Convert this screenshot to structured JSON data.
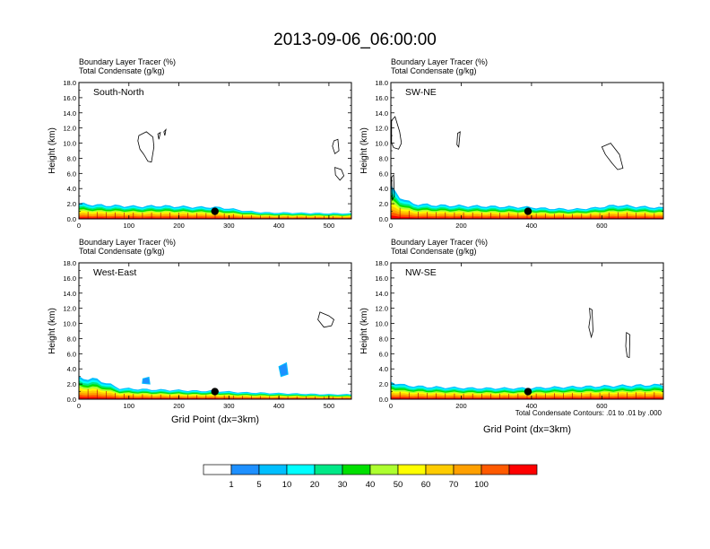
{
  "title": "2013-09-06_06:00:00",
  "colorbar": {
    "ticks": [
      "1",
      "5",
      "10",
      "20",
      "30",
      "40",
      "50",
      "60",
      "70",
      "100"
    ],
    "colors": [
      "#ffffff",
      "#1e90ff",
      "#00bfff",
      "#00ffff",
      "#00e887",
      "#00e000",
      "#adff2f",
      "#ffff00",
      "#ffcc00",
      "#ffa000",
      "#ff5a00",
      "#ff0000"
    ]
  },
  "ylabel": "Height (km)",
  "xlabel": "Grid Point (dx=3km)",
  "contour_note": "Total Condensate Contours: .01 to .01 by .000",
  "chart_data": [
    {
      "type": "heatmap",
      "name": "South-North",
      "label": "South-North",
      "subtitle_line1": "Boundary Layer Tracer   (%)",
      "subtitle_line2": "Total Condensate   (g/kg)",
      "xlim": [
        0,
        545
      ],
      "xticks": [
        0,
        100,
        200,
        300,
        400,
        500
      ],
      "ylim": [
        0,
        18
      ],
      "yticks": [
        "0.0",
        "2.0",
        "4.0",
        "6.0",
        "8.0",
        "10.0",
        "12.0",
        "14.0",
        "16.0",
        "18.0"
      ],
      "marker": {
        "x": 272,
        "y": 1.0
      },
      "tracer_columns": [
        [
          0,
          2.2
        ],
        [
          40,
          2.0
        ],
        [
          80,
          1.9
        ],
        [
          120,
          1.8
        ],
        [
          160,
          1.9
        ],
        [
          200,
          1.8
        ],
        [
          240,
          1.7
        ],
        [
          272,
          1.7
        ],
        [
          300,
          1.5
        ],
        [
          340,
          1.1
        ],
        [
          380,
          0.9
        ],
        [
          420,
          0.9
        ],
        [
          460,
          0.85
        ],
        [
          500,
          0.8
        ],
        [
          545,
          0.8
        ]
      ],
      "cloud_contours": [
        [
          [
            120,
            11.0
          ],
          [
            135,
            11.5
          ],
          [
            148,
            10.8
          ],
          [
            150,
            9.5
          ],
          [
            145,
            7.5
          ],
          [
            138,
            7.6
          ],
          [
            130,
            8.5
          ],
          [
            122,
            9.2
          ],
          [
            118,
            10.3
          ]
        ],
        [
          [
            158,
            11.2
          ],
          [
            163,
            11.4
          ],
          [
            160,
            10.5
          ]
        ],
        [
          [
            170,
            11.5
          ],
          [
            174,
            11.8
          ],
          [
            172,
            11.0
          ]
        ],
        [
          [
            510,
            10.3
          ],
          [
            518,
            10.5
          ],
          [
            520,
            9.0
          ],
          [
            512,
            8.6
          ],
          [
            507,
            9.6
          ]
        ],
        [
          [
            512,
            6.8
          ],
          [
            525,
            6.5
          ],
          [
            530,
            5.7
          ],
          [
            522,
            5.1
          ],
          [
            513,
            5.8
          ]
        ]
      ]
    },
    {
      "type": "heatmap",
      "name": "SW-NE",
      "label": "SW-NE",
      "subtitle_line1": "Boundary Layer Tracer   (%)",
      "subtitle_line2": "Total Condensate   (g/kg)",
      "xlim": [
        0,
        775
      ],
      "xticks": [
        0,
        200,
        400,
        600
      ],
      "ylim": [
        0,
        18
      ],
      "yticks": [
        "0.0",
        "2.0",
        "4.0",
        "6.0",
        "8.0",
        "10.0",
        "12.0",
        "14.0",
        "16.0",
        "18.0"
      ],
      "marker": {
        "x": 390,
        "y": 1.0
      },
      "tracer_columns": [
        [
          0,
          4.5
        ],
        [
          30,
          3.0
        ],
        [
          60,
          2.2
        ],
        [
          120,
          2.0
        ],
        [
          200,
          1.9
        ],
        [
          300,
          1.8
        ],
        [
          390,
          1.7
        ],
        [
          450,
          1.5
        ],
        [
          520,
          1.4
        ],
        [
          580,
          1.6
        ],
        [
          640,
          2.0
        ],
        [
          700,
          1.8
        ],
        [
          775,
          1.6
        ]
      ],
      "cloud_contours": [
        [
          [
            2,
            13.0
          ],
          [
            12,
            13.5
          ],
          [
            25,
            11.5
          ],
          [
            30,
            10.0
          ],
          [
            22,
            9.2
          ],
          [
            8,
            9.4
          ],
          [
            2,
            10.0
          ]
        ],
        [
          [
            190,
            11.3
          ],
          [
            197,
            11.5
          ],
          [
            193,
            9.5
          ],
          [
            188,
            9.8
          ]
        ],
        [
          [
            600,
            9.5
          ],
          [
            625,
            10.0
          ],
          [
            650,
            8.5
          ],
          [
            660,
            6.7
          ],
          [
            645,
            6.5
          ],
          [
            630,
            7.3
          ],
          [
            610,
            8.5
          ]
        ],
        [
          [
            2,
            5.5
          ],
          [
            8,
            5.8
          ],
          [
            10,
            3.0
          ],
          [
            4,
            2.5
          ]
        ]
      ]
    },
    {
      "type": "heatmap",
      "name": "West-East",
      "label": "West-East",
      "subtitle_line1": "Boundary Layer Tracer   (%)",
      "subtitle_line2": "Total Condensate   (g/kg)",
      "xlim": [
        0,
        545
      ],
      "xticks": [
        0,
        100,
        200,
        300,
        400,
        500
      ],
      "ylim": [
        0,
        18
      ],
      "yticks": [
        "0.0",
        "2.0",
        "4.0",
        "6.0",
        "8.0",
        "10.0",
        "12.0",
        "14.0",
        "16.0",
        "18.0"
      ],
      "marker": {
        "x": 272,
        "y": 1.0
      },
      "tracer_columns": [
        [
          0,
          3.1
        ],
        [
          40,
          2.8
        ],
        [
          80,
          1.6
        ],
        [
          140,
          1.4
        ],
        [
          200,
          1.3
        ],
        [
          240,
          1.2
        ],
        [
          272,
          1.2
        ],
        [
          320,
          1.0
        ],
        [
          380,
          0.9
        ],
        [
          440,
          0.8
        ],
        [
          500,
          0.7
        ],
        [
          545,
          0.7
        ]
      ],
      "cloud_contours": [
        [
          [
            482,
            11.5
          ],
          [
            500,
            11.0
          ],
          [
            510,
            10.5
          ],
          [
            505,
            9.7
          ],
          [
            490,
            9.5
          ],
          [
            478,
            10.5
          ]
        ]
      ],
      "blue_blobs": [
        [
          [
            400,
            4.3
          ],
          [
            415,
            4.8
          ],
          [
            418,
            3.3
          ],
          [
            404,
            3.0
          ]
        ],
        [
          [
            128,
            2.7
          ],
          [
            140,
            2.9
          ],
          [
            142,
            2.0
          ],
          [
            127,
            2.1
          ]
        ]
      ]
    },
    {
      "type": "heatmap",
      "name": "NW-SE",
      "label": "NW-SE",
      "subtitle_line1": "Boundary Layer Tracer   (%)",
      "subtitle_line2": "Total Condensate   (g/kg)",
      "xlim": [
        0,
        775
      ],
      "xticks": [
        0,
        200,
        400,
        600
      ],
      "ylim": [
        0,
        18
      ],
      "yticks": [
        "0.0",
        "2.0",
        "4.0",
        "6.0",
        "8.0",
        "10.0",
        "12.0",
        "14.0",
        "16.0",
        "18.0"
      ],
      "marker": {
        "x": 390,
        "y": 1.0
      },
      "tracer_columns": [
        [
          0,
          2.5
        ],
        [
          40,
          2.0
        ],
        [
          100,
          1.8
        ],
        [
          160,
          1.7
        ],
        [
          240,
          1.6
        ],
        [
          320,
          1.6
        ],
        [
          390,
          1.6
        ],
        [
          440,
          1.7
        ],
        [
          520,
          1.8
        ],
        [
          600,
          1.9
        ],
        [
          680,
          2.0
        ],
        [
          775,
          2.1
        ]
      ],
      "cloud_contours": [
        [
          [
            565,
            12.0
          ],
          [
            572,
            11.8
          ],
          [
            575,
            9.0
          ],
          [
            570,
            8.2
          ],
          [
            563,
            9.5
          ],
          [
            567,
            10.8
          ]
        ],
        [
          [
            670,
            8.8
          ],
          [
            680,
            8.5
          ],
          [
            678,
            5.5
          ],
          [
            672,
            5.6
          ],
          [
            668,
            7.0
          ]
        ]
      ]
    }
  ]
}
